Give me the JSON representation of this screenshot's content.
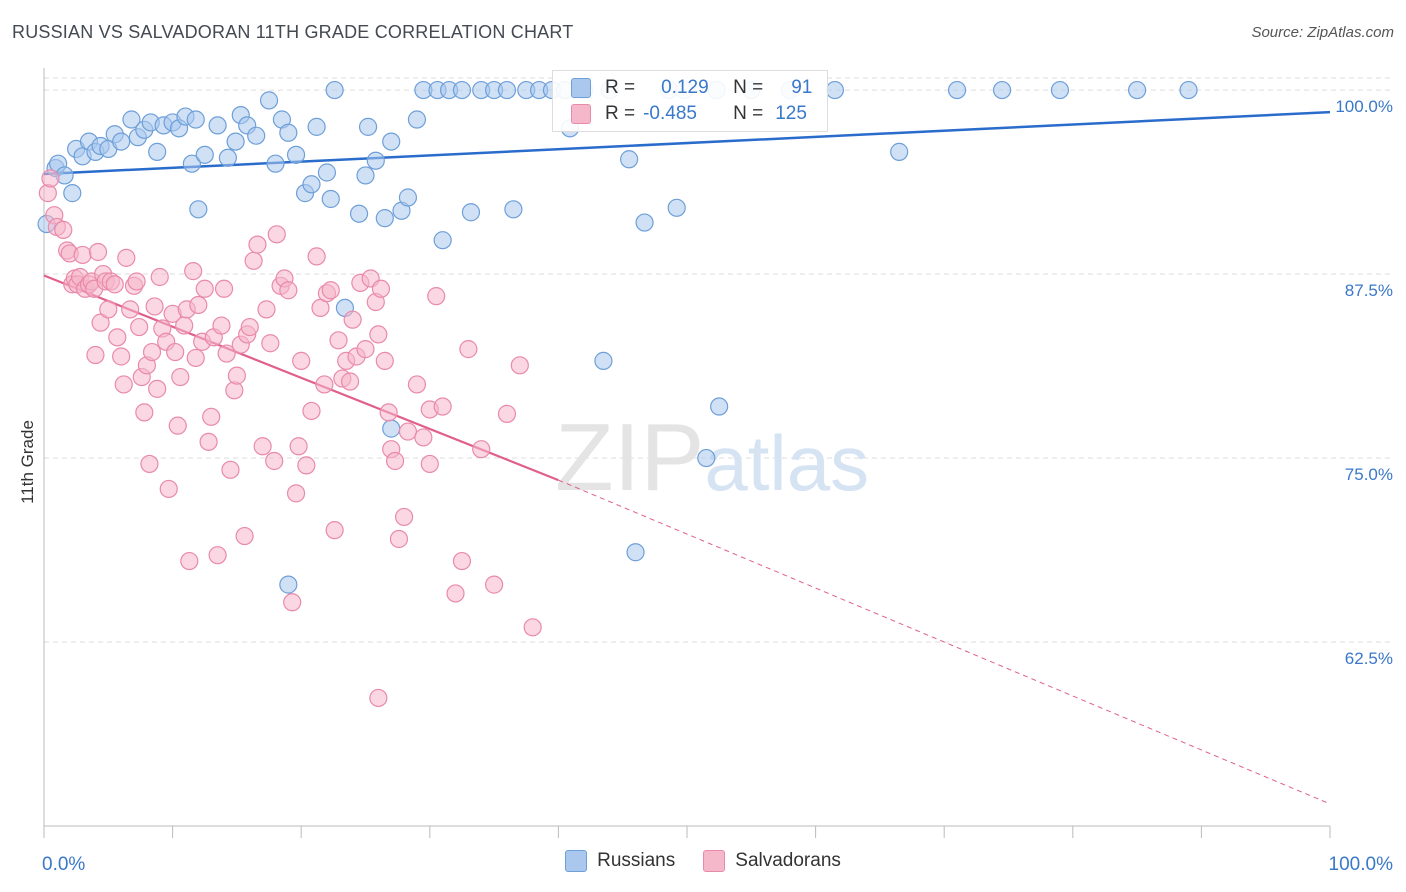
{
  "title": "RUSSIAN VS SALVADORAN 11TH GRADE CORRELATION CHART",
  "source": "Source: ZipAtlas.com",
  "watermark": "ZIPatlas",
  "legend": {
    "russians": {
      "r_label": "R =",
      "r_value": "0.129",
      "n_label": "N =",
      "n_value": "91"
    },
    "salvadorans": {
      "r_label": "R =",
      "r_value": "-0.485",
      "n_label": "N =",
      "n_value": "125"
    }
  },
  "colors": {
    "russians_fill": "#aac8ee",
    "russians_stroke": "#6e9fd8",
    "russians_line": "#2a6ccb",
    "salvadorans_fill": "#f5b7ca",
    "salvadorans_stroke": "#e98aaa",
    "salvadorans_line": "#e0608a",
    "axis_label": "#3a78c9"
  },
  "chart_data": {
    "type": "scatter",
    "title": "RUSSIAN VS SALVADORAN 11TH GRADE CORRELATION CHART",
    "xlabel": "",
    "ylabel": "11th Grade",
    "xlim": [
      0,
      100
    ],
    "ylim": [
      50,
      101.5
    ],
    "x_tick_labels": [
      "0.0%",
      "100.0%"
    ],
    "y_ticks": [
      62.5,
      75.0,
      87.5,
      100.0
    ],
    "y_tick_labels": [
      "62.5%",
      "75.0%",
      "87.5%",
      "100.0%"
    ],
    "grid": true,
    "legend_position": "top-center",
    "series": [
      {
        "name": "Russians",
        "r": 0.129,
        "n": 91,
        "trend": {
          "x": [
            0,
            100
          ],
          "y": [
            94.3,
            98.5
          ]
        },
        "points": [
          [
            0.2,
            90.9
          ],
          [
            0.9,
            94.7
          ],
          [
            1.1,
            95.0
          ],
          [
            1.6,
            94.2
          ],
          [
            2.2,
            93.0
          ],
          [
            2.5,
            96.0
          ],
          [
            3.0,
            95.5
          ],
          [
            3.5,
            96.5
          ],
          [
            4.0,
            95.8
          ],
          [
            4.4,
            96.2
          ],
          [
            5.0,
            96.0
          ],
          [
            5.5,
            97.0
          ],
          [
            6.0,
            96.5
          ],
          [
            6.8,
            98.0
          ],
          [
            7.3,
            96.8
          ],
          [
            7.8,
            97.3
          ],
          [
            8.3,
            97.8
          ],
          [
            8.8,
            95.8
          ],
          [
            9.3,
            97.6
          ],
          [
            10.0,
            97.8
          ],
          [
            10.5,
            97.4
          ],
          [
            11.0,
            98.2
          ],
          [
            11.5,
            95.0
          ],
          [
            11.8,
            98.0
          ],
          [
            12.0,
            91.9
          ],
          [
            12.5,
            95.6
          ],
          [
            13.5,
            97.6
          ],
          [
            14.3,
            95.4
          ],
          [
            14.9,
            96.5
          ],
          [
            15.3,
            98.3
          ],
          [
            15.8,
            97.6
          ],
          [
            16.5,
            96.9
          ],
          [
            17.5,
            99.3
          ],
          [
            18.0,
            95.0
          ],
          [
            18.5,
            98.0
          ],
          [
            19.0,
            97.1
          ],
          [
            19.6,
            95.6
          ],
          [
            20.3,
            93.0
          ],
          [
            20.8,
            93.6
          ],
          [
            21.2,
            97.5
          ],
          [
            22.0,
            94.4
          ],
          [
            22.6,
            100.0
          ],
          [
            22.3,
            92.6
          ],
          [
            23.4,
            85.2
          ],
          [
            24.5,
            91.6
          ],
          [
            25.0,
            94.2
          ],
          [
            25.2,
            97.5
          ],
          [
            25.8,
            95.2
          ],
          [
            26.5,
            91.3
          ],
          [
            27.0,
            96.5
          ],
          [
            27.8,
            91.8
          ],
          [
            28.3,
            92.7
          ],
          [
            29.0,
            98.0
          ],
          [
            29.5,
            100.0
          ],
          [
            30.6,
            100.0
          ],
          [
            31.0,
            89.8
          ],
          [
            31.5,
            100.0
          ],
          [
            32.5,
            100.0
          ],
          [
            33.2,
            91.7
          ],
          [
            34.0,
            100.0
          ],
          [
            35.0,
            100.0
          ],
          [
            36.0,
            100.0
          ],
          [
            36.5,
            91.9
          ],
          [
            37.5,
            100.0
          ],
          [
            38.5,
            100.0
          ],
          [
            39.5,
            100.0
          ],
          [
            40.5,
            100.0
          ],
          [
            40.9,
            97.4
          ],
          [
            42.0,
            100.0
          ],
          [
            43.5,
            81.6
          ],
          [
            44.0,
            100.0
          ],
          [
            45.5,
            95.3
          ],
          [
            46.0,
            68.6
          ],
          [
            46.7,
            91.0
          ],
          [
            48.6,
            100.0
          ],
          [
            49.2,
            92.0
          ],
          [
            49.8,
            100.0
          ],
          [
            51.5,
            75.0
          ],
          [
            52.3,
            100.0
          ],
          [
            52.5,
            78.5
          ],
          [
            27.0,
            77.0
          ],
          [
            19.0,
            66.4
          ],
          [
            55.0,
            100.0
          ],
          [
            58.0,
            100.0
          ],
          [
            61.5,
            100.0
          ],
          [
            66.5,
            95.8
          ],
          [
            71.0,
            100.0
          ],
          [
            74.5,
            100.0
          ],
          [
            79.0,
            100.0
          ],
          [
            85.0,
            100.0
          ],
          [
            89.0,
            100.0
          ]
        ]
      },
      {
        "name": "Salvadorans",
        "r": -0.485,
        "n": 125,
        "trend": {
          "x": [
            0,
            40
          ],
          "y": [
            87.4,
            73.5
          ]
        },
        "trend_extension": {
          "x": [
            40,
            100
          ],
          "y": [
            73.5,
            51.5
          ]
        },
        "points": [
          [
            0.3,
            93.0
          ],
          [
            0.5,
            94.0
          ],
          [
            0.8,
            91.5
          ],
          [
            1.0,
            90.7
          ],
          [
            1.5,
            90.5
          ],
          [
            1.8,
            89.1
          ],
          [
            2.0,
            88.9
          ],
          [
            2.2,
            86.8
          ],
          [
            2.4,
            87.2
          ],
          [
            2.6,
            86.8
          ],
          [
            2.8,
            87.3
          ],
          [
            3.0,
            88.8
          ],
          [
            3.2,
            86.5
          ],
          [
            3.5,
            86.8
          ],
          [
            3.7,
            87.0
          ],
          [
            3.9,
            86.5
          ],
          [
            4.0,
            82.0
          ],
          [
            4.2,
            89.0
          ],
          [
            4.4,
            84.2
          ],
          [
            4.6,
            87.5
          ],
          [
            4.8,
            87.0
          ],
          [
            5.0,
            85.1
          ],
          [
            5.2,
            87.0
          ],
          [
            5.5,
            86.8
          ],
          [
            5.7,
            83.2
          ],
          [
            6.0,
            81.9
          ],
          [
            6.2,
            80.0
          ],
          [
            6.4,
            88.6
          ],
          [
            6.7,
            85.1
          ],
          [
            7.0,
            86.7
          ],
          [
            7.2,
            87.0
          ],
          [
            7.4,
            83.9
          ],
          [
            7.6,
            80.5
          ],
          [
            7.8,
            78.1
          ],
          [
            8.0,
            81.3
          ],
          [
            8.2,
            74.6
          ],
          [
            8.4,
            82.2
          ],
          [
            8.6,
            85.3
          ],
          [
            8.8,
            79.7
          ],
          [
            9.0,
            87.3
          ],
          [
            9.2,
            83.8
          ],
          [
            9.5,
            82.9
          ],
          [
            9.7,
            72.9
          ],
          [
            10.0,
            84.8
          ],
          [
            10.2,
            82.2
          ],
          [
            10.4,
            77.2
          ],
          [
            10.6,
            80.5
          ],
          [
            10.9,
            84.0
          ],
          [
            11.1,
            85.1
          ],
          [
            11.3,
            68.0
          ],
          [
            11.6,
            87.7
          ],
          [
            11.8,
            81.8
          ],
          [
            12.0,
            85.4
          ],
          [
            12.3,
            82.9
          ],
          [
            12.5,
            86.5
          ],
          [
            12.8,
            76.1
          ],
          [
            13.0,
            77.8
          ],
          [
            13.2,
            83.2
          ],
          [
            13.5,
            68.4
          ],
          [
            13.8,
            84.0
          ],
          [
            14.0,
            86.5
          ],
          [
            14.2,
            82.1
          ],
          [
            14.5,
            74.2
          ],
          [
            14.8,
            79.6
          ],
          [
            15.0,
            80.6
          ],
          [
            15.3,
            82.7
          ],
          [
            15.6,
            69.7
          ],
          [
            15.8,
            83.4
          ],
          [
            16.0,
            83.9
          ],
          [
            16.3,
            88.4
          ],
          [
            16.6,
            89.5
          ],
          [
            17.0,
            75.8
          ],
          [
            17.3,
            85.1
          ],
          [
            17.6,
            82.8
          ],
          [
            17.9,
            74.8
          ],
          [
            18.1,
            90.2
          ],
          [
            18.4,
            86.7
          ],
          [
            18.7,
            87.2
          ],
          [
            19.0,
            86.4
          ],
          [
            19.3,
            65.2
          ],
          [
            19.6,
            72.6
          ],
          [
            19.8,
            75.8
          ],
          [
            20.0,
            81.6
          ],
          [
            20.4,
            74.5
          ],
          [
            20.8,
            78.2
          ],
          [
            21.2,
            88.7
          ],
          [
            21.5,
            85.2
          ],
          [
            21.8,
            80.0
          ],
          [
            22.0,
            86.2
          ],
          [
            22.3,
            86.4
          ],
          [
            22.6,
            70.1
          ],
          [
            22.9,
            83.0
          ],
          [
            23.2,
            80.4
          ],
          [
            23.5,
            81.6
          ],
          [
            23.8,
            80.2
          ],
          [
            24.0,
            84.4
          ],
          [
            24.3,
            81.9
          ],
          [
            24.6,
            86.9
          ],
          [
            25.0,
            82.4
          ],
          [
            25.4,
            87.2
          ],
          [
            25.8,
            85.6
          ],
          [
            26.0,
            83.4
          ],
          [
            26.2,
            86.5
          ],
          [
            26.5,
            81.6
          ],
          [
            26.8,
            78.1
          ],
          [
            27.0,
            75.6
          ],
          [
            27.3,
            74.8
          ],
          [
            27.6,
            69.5
          ],
          [
            28.0,
            71.0
          ],
          [
            28.3,
            76.8
          ],
          [
            29.0,
            80.0
          ],
          [
            29.5,
            76.4
          ],
          [
            30.0,
            78.3
          ],
          [
            30.5,
            86.0
          ],
          [
            31.0,
            78.5
          ],
          [
            32.0,
            65.8
          ],
          [
            32.5,
            68.0
          ],
          [
            33.0,
            82.4
          ],
          [
            34.0,
            75.6
          ],
          [
            35.0,
            66.4
          ],
          [
            36.0,
            78.0
          ],
          [
            37.0,
            81.3
          ],
          [
            38.0,
            63.5
          ],
          [
            26.0,
            58.7
          ],
          [
            30.0,
            74.6
          ]
        ]
      }
    ]
  }
}
